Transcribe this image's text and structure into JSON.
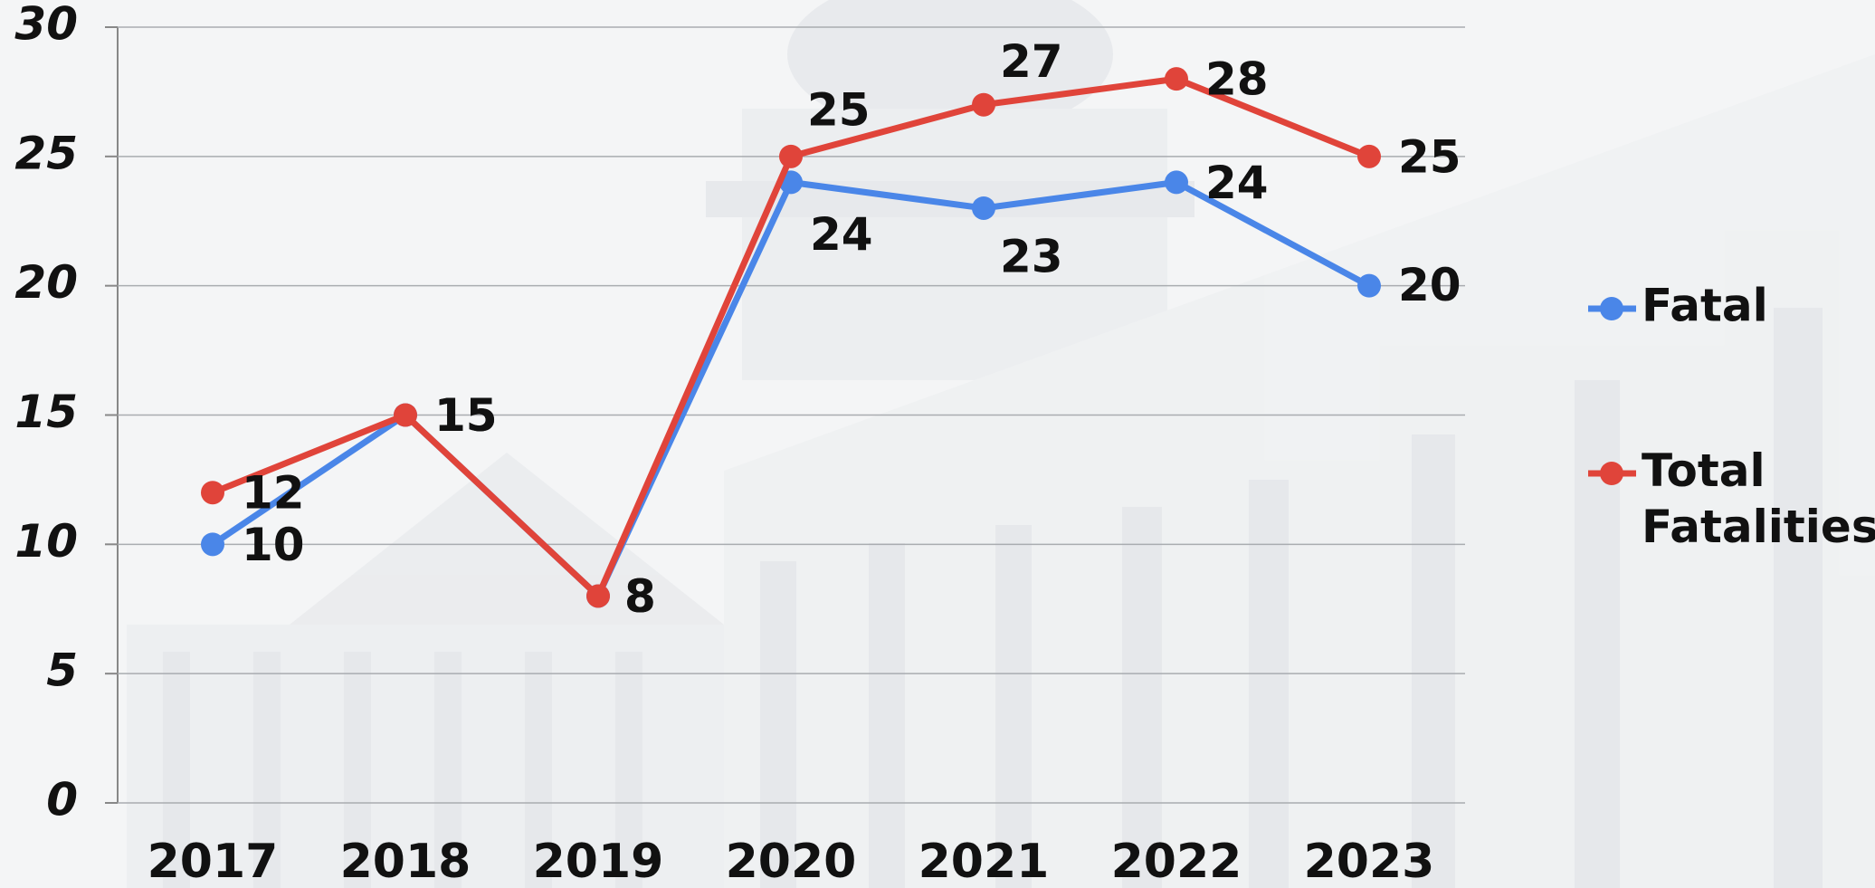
{
  "chart_data": {
    "type": "line",
    "categories": [
      "2017",
      "2018",
      "2019",
      "2020",
      "2021",
      "2022",
      "2023"
    ],
    "series": [
      {
        "name": "Fatal",
        "color": "#4a86e8",
        "values": [
          10,
          15,
          8,
          24,
          23,
          24,
          20
        ]
      },
      {
        "name": "Total Fatalities",
        "color": "#e0443a",
        "values": [
          12,
          15,
          8,
          25,
          27,
          28,
          25
        ]
      }
    ],
    "ylim": [
      0,
      30
    ],
    "yticks": [
      0,
      5,
      10,
      15,
      20,
      25,
      30
    ],
    "grid": true,
    "legend": "right"
  }
}
